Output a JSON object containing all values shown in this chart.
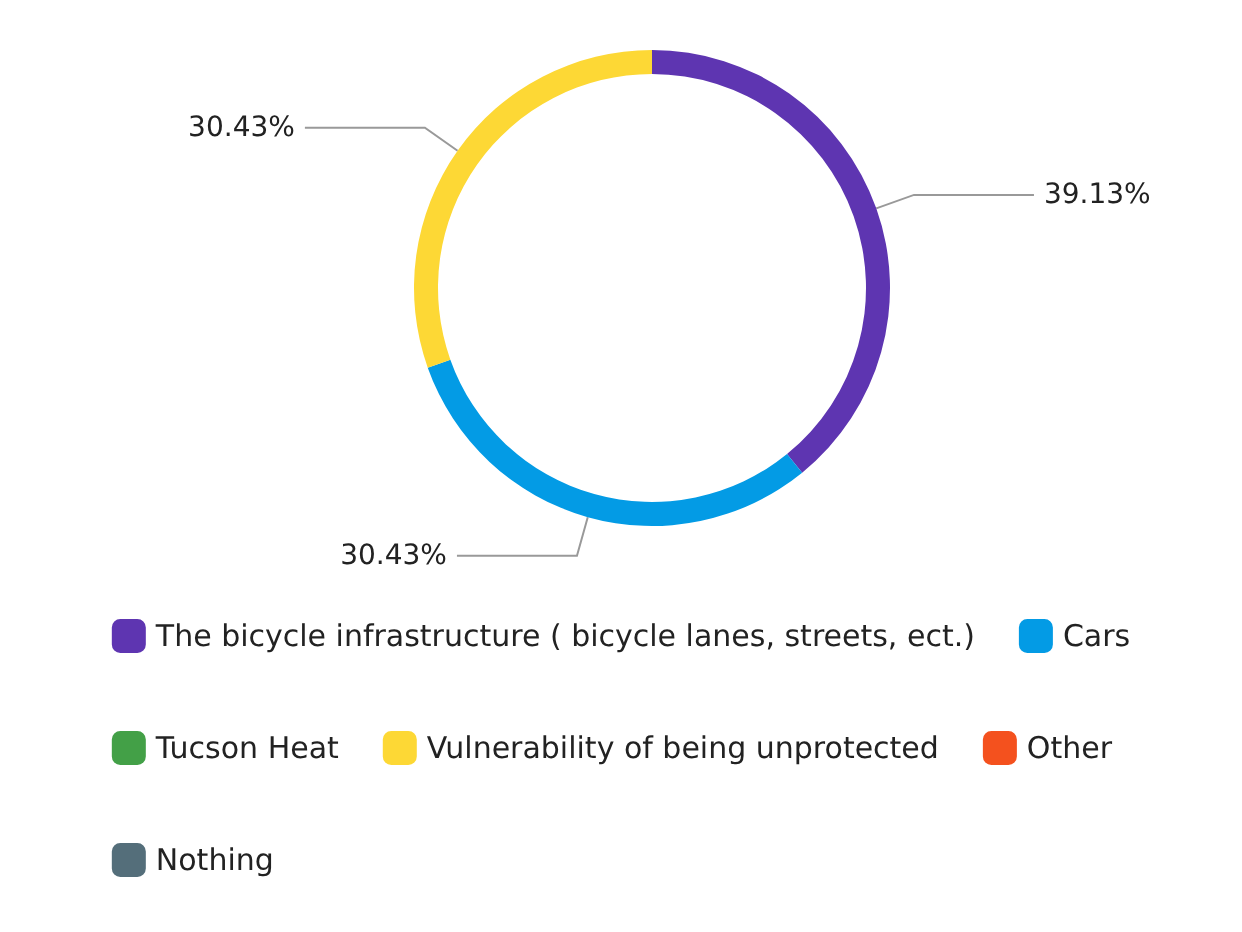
{
  "chart_data": {
    "type": "donut",
    "categories": [
      "The bicycle infrastructure ( bicycle lanes, streets, ect.)",
      "Cars",
      "Tucson Heat",
      "Vulnerability of being unprotected",
      "Other",
      "Nothing"
    ],
    "values": [
      39.13,
      30.43,
      0,
      30.43,
      0,
      0
    ],
    "value_labels": [
      "39.13%",
      "30.43%",
      null,
      "30.43%",
      null,
      null
    ],
    "colors": [
      "#5e35b1",
      "#039be5",
      "#43a047",
      "#fdd835",
      "#f4511e",
      "#546e7a"
    ],
    "legend": "bottom"
  }
}
